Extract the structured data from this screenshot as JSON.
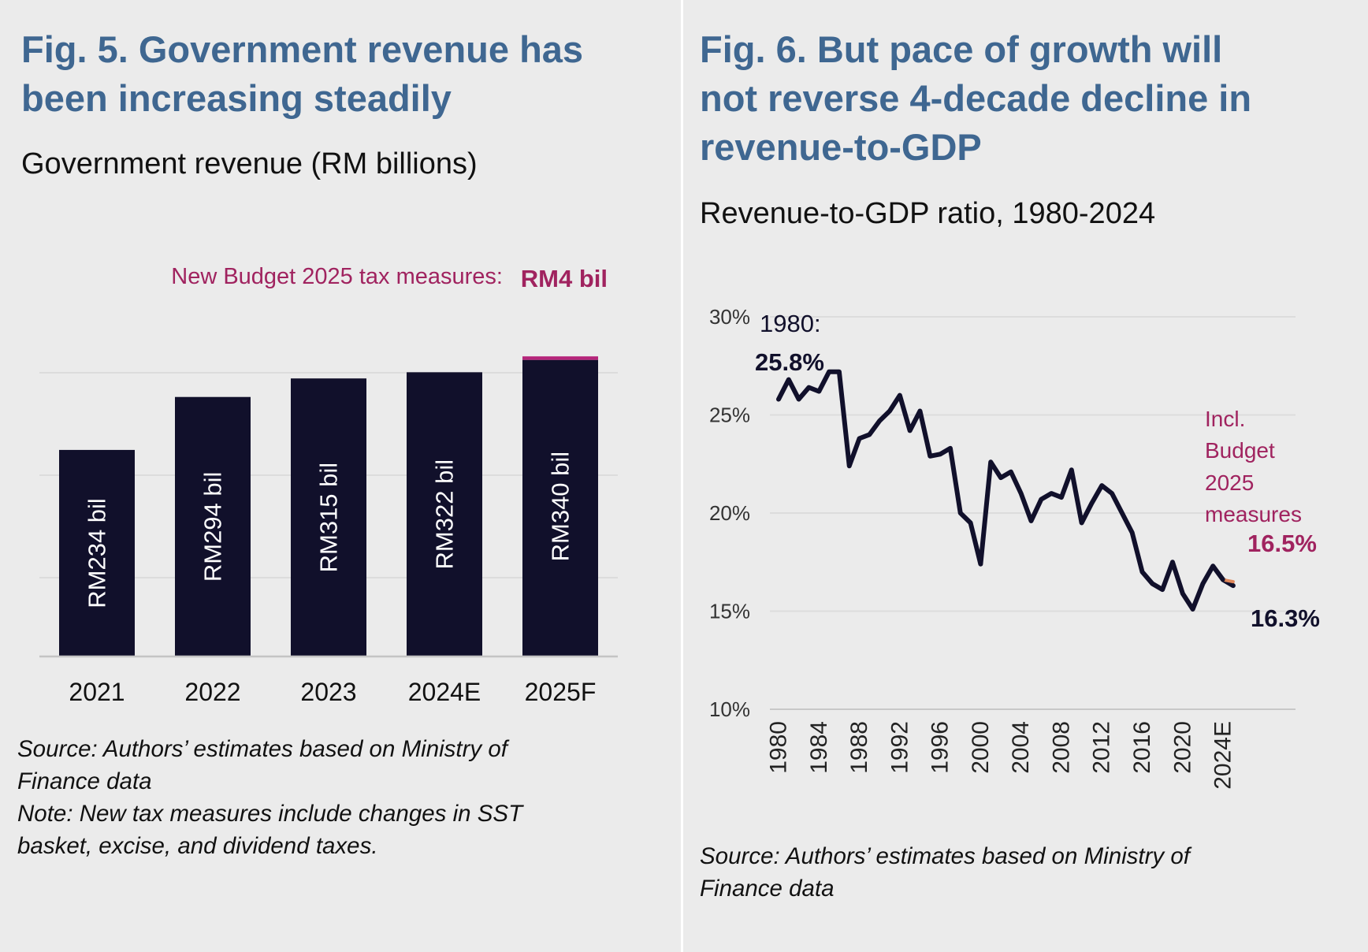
{
  "left": {
    "title_line1": "Fig. 5. Government revenue has",
    "title_line2": "been increasing steadily",
    "subtitle": "Government revenue (RM billions)",
    "note_line1": "Source: Authors’ estimates based on Ministry of",
    "note_line2": "Finance data",
    "note_line3": "Note: New tax measures include changes in SST",
    "note_line4": "basket, excise, and dividend taxes.",
    "annotation_text": "New Budget 2025 tax measures:",
    "annotation_value": "RM4 bil"
  },
  "right": {
    "title_line1": "Fig. 6. But pace of growth will",
    "title_line2": "not reverse 4-decade decline in",
    "title_line3": "revenue-to-GDP",
    "subtitle": "Revenue-to-GDP ratio, 1980-2024",
    "note_line1": "Source: Authors’ estimates based on Ministry of",
    "note_line2": "Finance data",
    "annotation_start_year": "1980:",
    "annotation_start_value": "25.8%",
    "annotation_measures": [
      "Incl.",
      "Budget",
      "2025",
      "measures"
    ],
    "annotation_incl_value": "16.5%",
    "annotation_end_value": "16.3%"
  },
  "colors": {
    "title": "#3f6791",
    "bar": "#11102b",
    "budget_increment": "#b5247a",
    "accent_text": "#a0235f",
    "line": "#11102b",
    "incl_measures_line": "#e0875a"
  },
  "chart_data": [
    {
      "type": "bar",
      "categories": [
        "2021",
        "2022",
        "2023",
        "2024E",
        "2025F"
      ],
      "series": [
        {
          "values": [
            234,
            294,
            315,
            322,
            336
          ]
        },
        {
          "name": "New Budget 2025 tax measures",
          "values": [
            0,
            0,
            0,
            0,
            4
          ]
        }
      ],
      "stacked": true,
      "data_labels": [
        "RM234 bil",
        "RM294 bil",
        "RM315 bil",
        "RM322 bil",
        "RM340 bil"
      ],
      "ylim": [
        0,
        350
      ],
      "grid": true
    },
    {
      "type": "line",
      "x": [
        1980,
        1981,
        1982,
        1983,
        1984,
        1985,
        1986,
        1987,
        1988,
        1989,
        1990,
        1991,
        1992,
        1993,
        1994,
        1995,
        1996,
        1997,
        1998,
        1999,
        2000,
        2001,
        2002,
        2003,
        2004,
        2005,
        2006,
        2007,
        2008,
        2009,
        2010,
        2011,
        2012,
        2013,
        2014,
        2015,
        2016,
        2017,
        2018,
        2019,
        2020,
        2021,
        2022,
        2023,
        2024,
        2025
      ],
      "x_ticks": [
        "1980",
        "1984",
        "1988",
        "1992",
        "1996",
        "2000",
        "2004",
        "2008",
        "2012",
        "2016",
        "2020",
        "2024E"
      ],
      "series": [
        {
          "values": [
            25.8,
            26.8,
            25.8,
            26.4,
            26.2,
            27.2,
            27.2,
            22.4,
            23.8,
            24.0,
            24.7,
            25.2,
            26.0,
            24.2,
            25.2,
            22.9,
            23.0,
            23.3,
            20.0,
            19.5,
            17.4,
            22.6,
            21.8,
            22.1,
            21.0,
            19.6,
            20.7,
            21.0,
            20.8,
            22.2,
            19.5,
            20.5,
            21.4,
            21.0,
            20.0,
            19.0,
            17.0,
            16.4,
            16.1,
            17.5,
            15.9,
            15.1,
            16.4,
            17.3,
            16.6,
            16.3
          ]
        },
        {
          "values": [
            null,
            null,
            null,
            null,
            null,
            null,
            null,
            null,
            null,
            null,
            null,
            null,
            null,
            null,
            null,
            null,
            null,
            null,
            null,
            null,
            null,
            null,
            null,
            null,
            null,
            null,
            null,
            null,
            null,
            null,
            null,
            null,
            null,
            null,
            null,
            null,
            null,
            null,
            null,
            null,
            null,
            null,
            null,
            null,
            16.6,
            16.5
          ]
        }
      ],
      "y_ticks": [
        "30%",
        "25%",
        "20%",
        "15%",
        "10%"
      ],
      "ylim": [
        10,
        30
      ],
      "grid": true
    }
  ]
}
